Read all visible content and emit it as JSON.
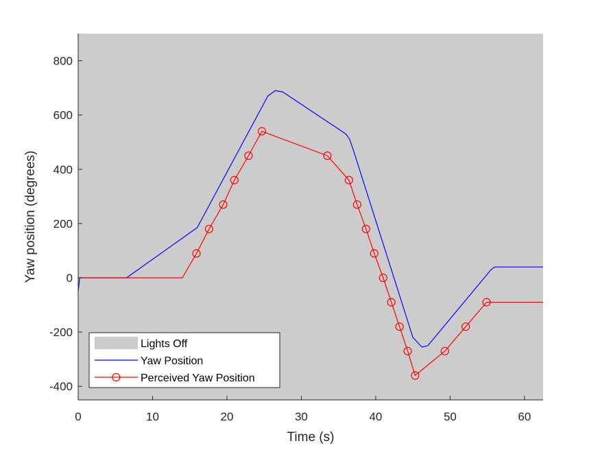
{
  "chart_data": {
    "type": "line",
    "title": "",
    "xlabel": "Time (s)",
    "ylabel": "Yaw position (degrees)",
    "xlim": [
      0,
      62.5
    ],
    "ylim": [
      -450,
      900
    ],
    "xticks": [
      0,
      10,
      20,
      30,
      40,
      50,
      60
    ],
    "yticks": [
      -400,
      -200,
      0,
      200,
      400,
      600,
      800
    ],
    "grid": false,
    "legend_position": "bottom-left",
    "background_regions": [
      {
        "name": "Lights Off",
        "x_range": [
          0,
          62.5
        ],
        "color": "#cccccc"
      }
    ],
    "series": [
      {
        "name": "Yaw Position",
        "color": "#0000ff",
        "marker": "none",
        "x": [
          0,
          0.2,
          6.5,
          16,
          16.3,
          25.5,
          26.5,
          27.5,
          36,
          36.5,
          37,
          45,
          46.2,
          47,
          55.5,
          56,
          62.5
        ],
        "y": [
          -50,
          0,
          0,
          185,
          200,
          670,
          690,
          685,
          530,
          510,
          470,
          -220,
          -255,
          -250,
          30,
          40,
          40
        ]
      },
      {
        "name": "Perceived Yaw Position",
        "color": "#ff0000",
        "marker": "circle",
        "x": [
          0,
          14,
          15.9,
          17.6,
          19.5,
          21,
          22.9,
          24.7,
          33.5,
          36.4,
          37.5,
          38.7,
          39.8,
          41,
          42.1,
          43.2,
          44.3,
          45.3,
          49.3,
          52.1,
          54.9,
          62.5
        ],
        "y": [
          0,
          0,
          90,
          180,
          270,
          360,
          450,
          540,
          450,
          360,
          270,
          180,
          90,
          0,
          -90,
          -180,
          -270,
          -360,
          -270,
          -180,
          -90,
          -90
        ],
        "marker_x": [
          15.9,
          17.6,
          19.5,
          21,
          22.9,
          24.7,
          33.5,
          36.4,
          37.5,
          38.7,
          39.8,
          41,
          42.1,
          43.2,
          44.3,
          45.3,
          49.3,
          52.1,
          54.9
        ],
        "marker_y": [
          90,
          180,
          270,
          360,
          450,
          540,
          450,
          360,
          270,
          180,
          90,
          0,
          -90,
          -180,
          -270,
          -360,
          -270,
          -180,
          -90
        ]
      }
    ]
  },
  "legend": {
    "items": [
      {
        "label": "Lights Off",
        "kind": "patch",
        "color": "#cccccc"
      },
      {
        "label": "Yaw Position",
        "kind": "line",
        "color": "#0000ff"
      },
      {
        "label": "Perceived Yaw Position",
        "kind": "line-marker",
        "color": "#ff0000"
      }
    ]
  }
}
